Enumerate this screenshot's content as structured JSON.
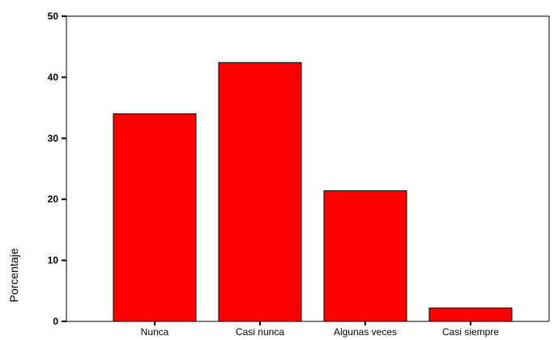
{
  "chart_data": {
    "type": "bar",
    "categories": [
      "Nunca",
      "Casi nunca",
      "Algunas veces",
      "Casi siempre"
    ],
    "values": [
      34.0,
      42.4,
      21.4,
      2.2
    ],
    "ylabel": "Porcentaje",
    "xlabel": "",
    "title": "",
    "ylim": [
      0,
      50
    ],
    "yticks": [
      0,
      10,
      20,
      30,
      40,
      50
    ],
    "grid": false,
    "bar_color": "#ff0000",
    "bar_edge_color": "#000000"
  }
}
